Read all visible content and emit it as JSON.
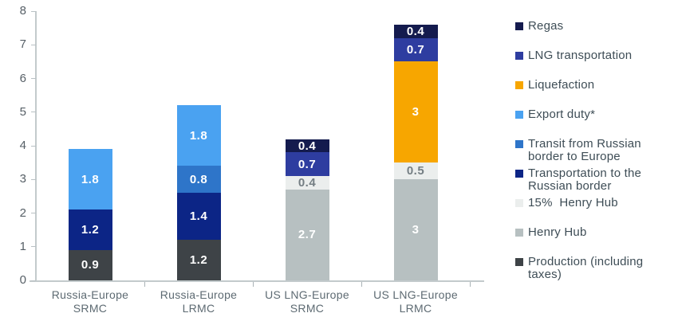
{
  "chart_data": {
    "type": "stacked-bar",
    "title": "",
    "xlabel": "",
    "ylabel": "",
    "ylim": [
      0,
      8
    ],
    "yticks": [
      "0",
      "1",
      "2",
      "3",
      "4",
      "5",
      "6",
      "7",
      "8"
    ],
    "grid": false,
    "legend_position": "right",
    "colors": {
      "regas": "#141b4e",
      "lng_transportation": "#2e3da0",
      "liquefaction": "#f7a600",
      "export_duty": "#4aa2f1",
      "transit_border_europe": "#2e75c9",
      "transport_russian_border": "#0c2586",
      "henry_hub_15": "#ebeeed",
      "henry_hub": "#b7c0c1",
      "production": "#3e4347"
    },
    "segment_label_colors": {
      "light": "#ffffff",
      "dark": "#747e83"
    },
    "bars": [
      {
        "category_lines": [
          "Russia-Europe",
          "SRMC"
        ],
        "segments": [
          {
            "series": "Production (including taxes)",
            "value": 0.9,
            "display": "0.9",
            "color_key": "production",
            "text": "light"
          },
          {
            "series": "Transportation to the Russian border",
            "value": 1.2,
            "display": "1.2",
            "color_key": "transport_russian_border",
            "text": "light"
          },
          {
            "series": "Export duty*",
            "value": 1.8,
            "display": "1.8",
            "color_key": "export_duty",
            "text": "light"
          }
        ]
      },
      {
        "category_lines": [
          "Russia-Europe",
          "LRMC"
        ],
        "segments": [
          {
            "series": "Production (including taxes)",
            "value": 1.2,
            "display": "1.2",
            "color_key": "production",
            "text": "light"
          },
          {
            "series": "Transportation to the Russian border",
            "value": 1.4,
            "display": "1.4",
            "color_key": "transport_russian_border",
            "text": "light"
          },
          {
            "series": "Transit from Russian border to Europe",
            "value": 0.8,
            "display": "0.8",
            "color_key": "transit_border_europe",
            "text": "light"
          },
          {
            "series": "Export duty*",
            "value": 1.8,
            "display": "1.8",
            "color_key": "export_duty",
            "text": "light"
          }
        ]
      },
      {
        "category_lines": [
          "US LNG-Europe",
          "SRMC"
        ],
        "segments": [
          {
            "series": "Henry Hub",
            "value": 2.7,
            "display": "2.7",
            "color_key": "henry_hub",
            "text": "light"
          },
          {
            "series": "15%  Henry Hub",
            "value": 0.4,
            "display": "0.4",
            "color_key": "henry_hub_15",
            "text": "dark"
          },
          {
            "series": "LNG transportation",
            "value": 0.7,
            "display": "0.7",
            "color_key": "lng_transportation",
            "text": "light"
          },
          {
            "series": "Regas",
            "value": 0.4,
            "display": "0.4",
            "color_key": "regas",
            "text": "light"
          }
        ]
      },
      {
        "category_lines": [
          "US LNG-Europe",
          "LRMC"
        ],
        "segments": [
          {
            "series": "Henry Hub",
            "value": 3,
            "display": "3",
            "color_key": "henry_hub",
            "text": "light"
          },
          {
            "series": "15%  Henry Hub",
            "value": 0.5,
            "display": "0.5",
            "color_key": "henry_hub_15",
            "text": "dark"
          },
          {
            "series": "Liquefaction",
            "value": 3,
            "display": "3",
            "color_key": "liquefaction",
            "text": "light"
          },
          {
            "series": "LNG transportation",
            "value": 0.7,
            "display": "0.7",
            "color_key": "lng_transportation",
            "text": "light"
          },
          {
            "series": "Regas",
            "value": 0.4,
            "display": "0.4",
            "color_key": "regas",
            "text": "light"
          }
        ]
      }
    ],
    "legend": [
      {
        "label": "Regas",
        "color_key": "regas"
      },
      {
        "label": "LNG transportation",
        "color_key": "lng_transportation"
      },
      {
        "label": "Liquefaction",
        "color_key": "liquefaction"
      },
      {
        "label": "Export duty*",
        "color_key": "export_duty"
      },
      {
        "label": "Transit from Russian border to Europe",
        "color_key": "transit_border_europe"
      },
      {
        "label": "Transportation to the Russian border",
        "color_key": "transport_russian_border"
      },
      {
        "label": "15%  Henry Hub",
        "color_key": "henry_hub_15"
      },
      {
        "label": "Henry Hub",
        "color_key": "henry_hub"
      },
      {
        "label": "Production (including taxes)",
        "color_key": "production"
      }
    ]
  }
}
